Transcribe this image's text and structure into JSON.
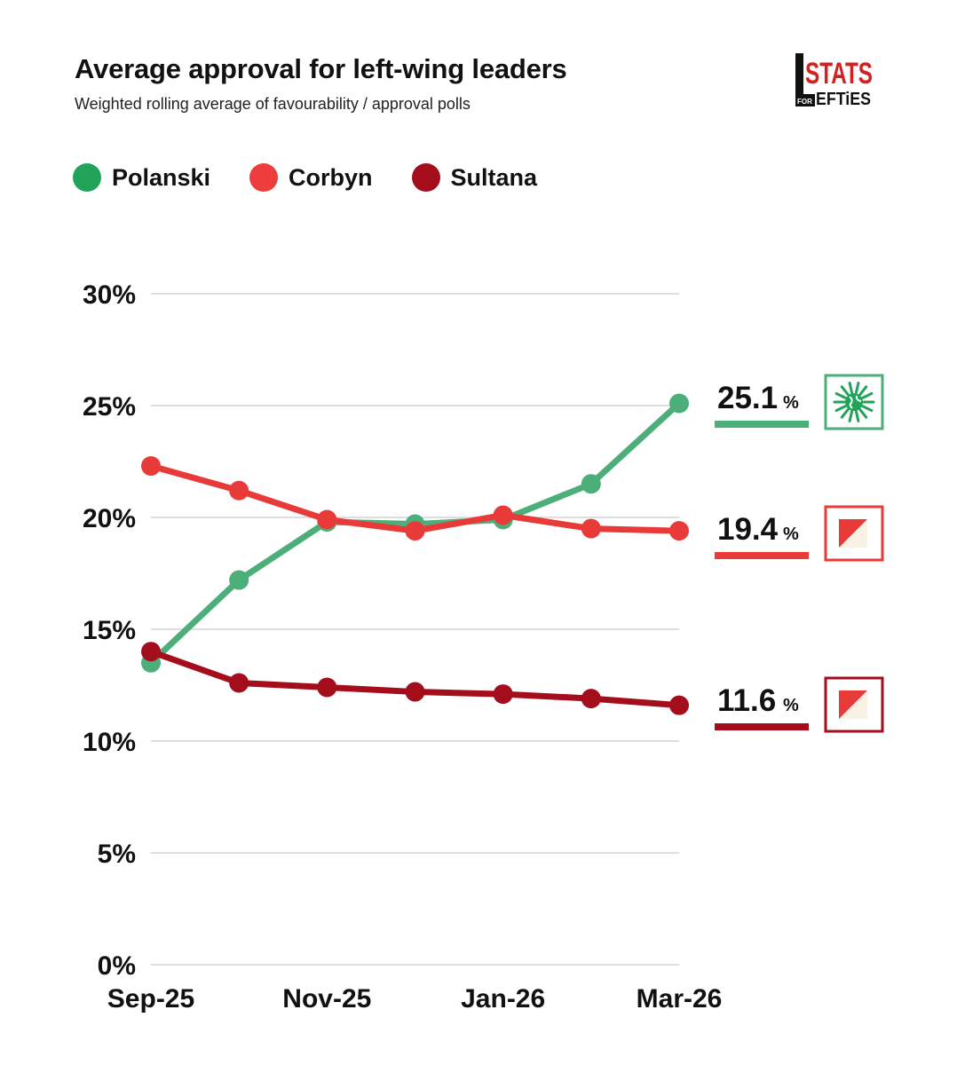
{
  "header": {
    "title": "Average approval for left-wing leaders",
    "subtitle": "Weighted rolling average of favourability / approval polls",
    "logo_text_top": "STATS",
    "logo_text_small": "FOR",
    "logo_text_bottom": "EFTiES"
  },
  "colors": {
    "polanski": "#4caf7a",
    "corbyn": "#e93a3a",
    "sultana": "#a30d1c",
    "grid": "#d4d4d4"
  },
  "chart_data": {
    "type": "line",
    "title": "Average approval for left-wing leaders",
    "subtitle": "Weighted rolling average of favourability / approval polls",
    "xlabel": "",
    "ylabel": "",
    "ylim": [
      0,
      30
    ],
    "grid": true,
    "legend": "top-left",
    "yticks": [
      {
        "value": 0,
        "label": "0%"
      },
      {
        "value": 5,
        "label": "5%"
      },
      {
        "value": 10,
        "label": "10%"
      },
      {
        "value": 15,
        "label": "15%"
      },
      {
        "value": 20,
        "label": "20%"
      },
      {
        "value": 25,
        "label": "25%"
      },
      {
        "value": 30,
        "label": "30%"
      }
    ],
    "x": [
      0,
      1,
      2,
      3,
      4,
      5,
      6
    ],
    "xticks": [
      {
        "index": 0,
        "label": "Sep-25"
      },
      {
        "index": 2,
        "label": "Nov-25"
      },
      {
        "index": 4,
        "label": "Jan-26"
      },
      {
        "index": 6,
        "label": "Mar-26"
      }
    ],
    "series": [
      {
        "key": "polanski",
        "name": "Polanski",
        "values": [
          13.5,
          17.2,
          19.8,
          19.7,
          19.9,
          21.5,
          25.1
        ],
        "end_label": "25.1",
        "end_pct": "%"
      },
      {
        "key": "corbyn",
        "name": "Corbyn",
        "values": [
          22.3,
          21.2,
          19.9,
          19.4,
          20.1,
          19.5,
          19.4
        ],
        "end_label": "19.4",
        "end_pct": "%"
      },
      {
        "key": "sultana",
        "name": "Sultana",
        "values": [
          14.0,
          12.6,
          12.4,
          12.2,
          12.1,
          11.9,
          11.6
        ],
        "end_label": "11.6",
        "end_pct": "%"
      }
    ]
  }
}
